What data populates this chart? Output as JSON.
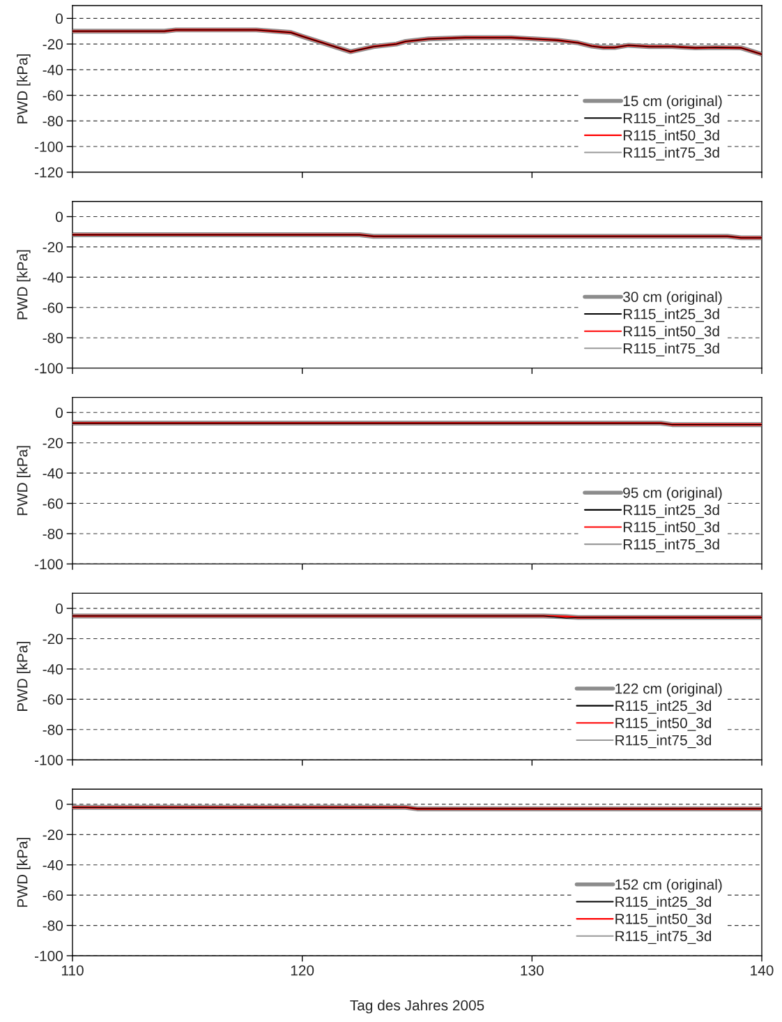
{
  "chart_data": [
    {
      "type": "line",
      "xlim": [
        110,
        140
      ],
      "xticks": [
        110,
        120,
        130,
        140
      ],
      "ylim": [
        -120,
        10
      ],
      "yticks": [
        -120,
        -100,
        -80,
        -60,
        -40,
        -20,
        0
      ],
      "ylabel": "PWD [kPa]",
      "grid": "y",
      "legend": "bottom right",
      "tick_labels": "y",
      "x": [
        110,
        114,
        114.5,
        118,
        119.5,
        120,
        122.1,
        123.1,
        124.1,
        124.5,
        125.5,
        127.1,
        129.1,
        131.1,
        132,
        132.6,
        133.1,
        133.6,
        134.2,
        135.1,
        136.1,
        137.1,
        138,
        139.1,
        140
      ],
      "series": [
        {
          "name": "15 cm (original)",
          "color": "#8c8c8c",
          "values": [
            -10,
            -10,
            -9,
            -9,
            -11,
            -14,
            -26,
            -22,
            -20,
            -18,
            -16,
            -15,
            -15,
            -17,
            -19,
            -21.6,
            -22.7,
            -22.7,
            -21,
            -22,
            -22,
            -23,
            -22.7,
            -23,
            -28
          ]
        },
        {
          "name": "R115_int25_3d",
          "color": "#000000",
          "values": [
            -10,
            -10,
            -9,
            -9,
            -11,
            -14,
            -26,
            -22,
            -20,
            -18,
            -16,
            -15,
            -15,
            -17,
            -19,
            -21.6,
            -22.7,
            -22.7,
            -21,
            -22,
            -22,
            -23,
            -22.7,
            -23,
            -28
          ]
        },
        {
          "name": "R115_int50_3d",
          "color": "#ff0000",
          "values": [
            -10,
            -10,
            -9,
            -9,
            -11,
            -14,
            -26,
            -22,
            -20,
            -18,
            -16,
            -15,
            -15,
            -17,
            -19,
            -21.6,
            -22.7,
            -22.7,
            -21,
            -22,
            -22,
            -23,
            -22.7,
            -23,
            -28
          ]
        },
        {
          "name": "R115_int75_3d",
          "color": "#999999",
          "values": [
            -10,
            -10,
            -9,
            -9,
            -11,
            -14,
            -26,
            -22,
            -20,
            -18,
            -16,
            -15,
            -15,
            -17,
            -19,
            -21.6,
            -22.7,
            -22.7,
            -21,
            -22,
            -22,
            -23,
            -22.7,
            -23,
            -28
          ]
        }
      ]
    },
    {
      "type": "line",
      "xlim": [
        110,
        140
      ],
      "xticks": [
        110,
        120,
        130,
        140
      ],
      "ylim": [
        -100,
        10
      ],
      "yticks": [
        -100,
        -80,
        -60,
        -40,
        -20,
        0
      ],
      "ylabel": "PWD [kPa]",
      "grid": "y",
      "legend": "bottom right",
      "tick_labels": "y",
      "x": [
        110,
        122.5,
        123.1,
        138.5,
        139.1,
        140
      ],
      "series": [
        {
          "name": "30 cm (original)",
          "color": "#8c8c8c",
          "values": [
            -12,
            -12,
            -13,
            -13,
            -14,
            -14
          ]
        },
        {
          "name": "R115_int25_3d",
          "color": "#000000",
          "values": [
            -12,
            -12,
            -13,
            -13,
            -14,
            -14
          ]
        },
        {
          "name": "R115_int50_3d",
          "color": "#ff0000",
          "values": [
            -12,
            -12,
            -13,
            -13,
            -14,
            -14
          ]
        },
        {
          "name": "R115_int75_3d",
          "color": "#999999",
          "values": [
            -12,
            -12,
            -13,
            -13,
            -14,
            -14
          ]
        }
      ]
    },
    {
      "type": "line",
      "xlim": [
        110,
        140
      ],
      "xticks": [
        110,
        120,
        130,
        140
      ],
      "ylim": [
        -100,
        10
      ],
      "yticks": [
        -100,
        -80,
        -60,
        -40,
        -20,
        0
      ],
      "ylabel": "PWD [kPa]",
      "grid": "y",
      "legend": "bottom right",
      "tick_labels": "y",
      "x": [
        110,
        135.6,
        136.1,
        140
      ],
      "series": [
        {
          "name": "95 cm (original)",
          "color": "#8c8c8c",
          "values": [
            -7,
            -7,
            -8,
            -8
          ]
        },
        {
          "name": "R115_int25_3d",
          "color": "#000000",
          "values": [
            -7,
            -7,
            -8,
            -8
          ]
        },
        {
          "name": "R115_int50_3d",
          "color": "#ff0000",
          "values": [
            -7,
            -7,
            -8,
            -8
          ]
        },
        {
          "name": "R115_int75_3d",
          "color": "#999999",
          "values": [
            -7,
            -7,
            -8,
            -8
          ]
        }
      ]
    },
    {
      "type": "line",
      "xlim": [
        110,
        140
      ],
      "xticks": [
        110,
        120,
        130,
        140
      ],
      "ylim": [
        -100,
        10
      ],
      "yticks": [
        -100,
        -80,
        -60,
        -40,
        -20,
        0
      ],
      "ylabel": "PWD [kPa]",
      "grid": "y",
      "legend": "bottom right",
      "tick_labels": "y",
      "x": [
        110,
        130.5,
        131.5,
        132,
        140
      ],
      "series": [
        {
          "name": "122 cm (original)",
          "color": "#8c8c8c",
          "values": [
            -5,
            -5,
            -5.5,
            -6,
            -6
          ]
        },
        {
          "name": "R115_int25_3d",
          "color": "#000000",
          "values": [
            -5,
            -5,
            -6.5,
            -6,
            -6
          ]
        },
        {
          "name": "R115_int50_3d",
          "color": "#ff0000",
          "values": [
            -5,
            -5,
            -5.5,
            -6,
            -6
          ]
        },
        {
          "name": "R115_int75_3d",
          "color": "#999999",
          "values": [
            -5,
            -5,
            -5.5,
            -6,
            -6
          ]
        }
      ]
    },
    {
      "type": "line",
      "xlim": [
        110,
        140
      ],
      "xticks": [
        110,
        120,
        130,
        140
      ],
      "ylim": [
        -100,
        10
      ],
      "yticks": [
        -100,
        -80,
        -60,
        -40,
        -20,
        0
      ],
      "ylabel": "PWD [kPa]",
      "xlabel": "Tag des Jahres 2005",
      "grid": "y",
      "legend": "bottom right",
      "x": [
        110,
        124.5,
        125,
        140
      ],
      "series": [
        {
          "name": "152 cm (original)",
          "color": "#8c8c8c",
          "values": [
            -2,
            -2,
            -3,
            -3
          ]
        },
        {
          "name": "R115_int25_3d",
          "color": "#000000",
          "values": [
            -2,
            -2,
            -3,
            -3
          ]
        },
        {
          "name": "R115_int50_3d",
          "color": "#ff0000",
          "values": [
            -2,
            -2,
            -3,
            -3
          ]
        },
        {
          "name": "R115_int75_3d",
          "color": "#999999",
          "values": [
            -2,
            -2,
            -3,
            -3
          ]
        }
      ]
    }
  ]
}
